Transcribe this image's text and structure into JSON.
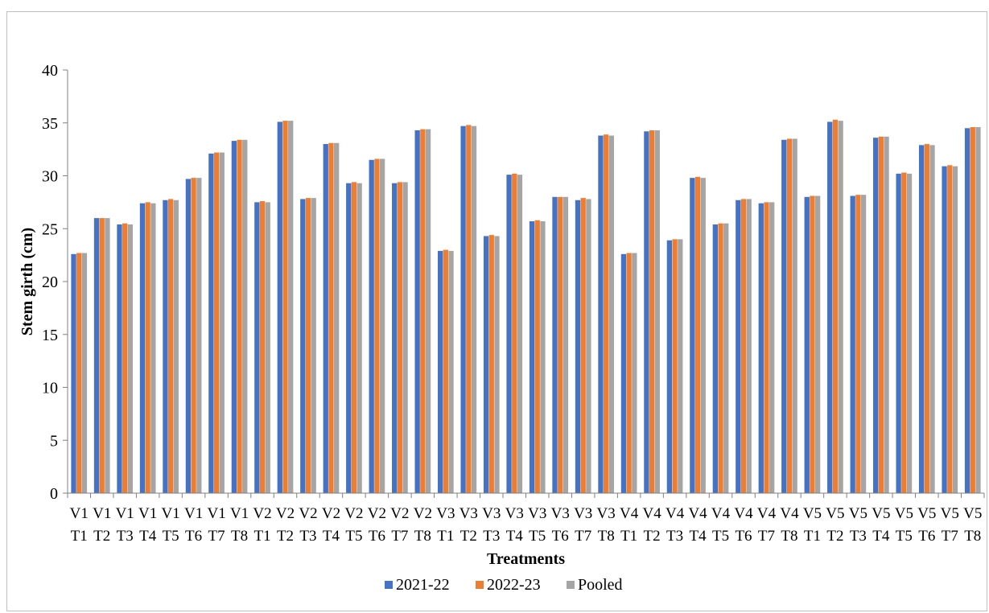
{
  "chart_data": {
    "type": "bar",
    "title": "",
    "xlabel": "Treatments",
    "ylabel": "Stem girth (cm)",
    "ylim": [
      0,
      40
    ],
    "yticks": [
      0,
      5,
      10,
      15,
      20,
      25,
      30,
      35,
      40
    ],
    "grid": false,
    "legend_position": "bottom",
    "categories": [
      [
        "V1",
        "T1"
      ],
      [
        "V1",
        "T2"
      ],
      [
        "V1",
        "T3"
      ],
      [
        "V1",
        "T4"
      ],
      [
        "V1",
        "T5"
      ],
      [
        "V1",
        "T6"
      ],
      [
        "V1",
        "T7"
      ],
      [
        "V1",
        "T8"
      ],
      [
        "V2",
        "T1"
      ],
      [
        "V2",
        "T2"
      ],
      [
        "V2",
        "T3"
      ],
      [
        "V2",
        "T4"
      ],
      [
        "V2",
        "T5"
      ],
      [
        "V2",
        "T6"
      ],
      [
        "V2",
        "T7"
      ],
      [
        "V2",
        "T8"
      ],
      [
        "V3",
        "T1"
      ],
      [
        "V3",
        "T2"
      ],
      [
        "V3",
        "T3"
      ],
      [
        "V3",
        "T4"
      ],
      [
        "V3",
        "T5"
      ],
      [
        "V3",
        "T6"
      ],
      [
        "V3",
        "T7"
      ],
      [
        "V3",
        "T8"
      ],
      [
        "V4",
        "T1"
      ],
      [
        "V4",
        "T2"
      ],
      [
        "V4",
        "T3"
      ],
      [
        "V4",
        "T4"
      ],
      [
        "V4",
        "T5"
      ],
      [
        "V4",
        "T6"
      ],
      [
        "V4",
        "T7"
      ],
      [
        "V4",
        "T8"
      ],
      [
        "V5",
        "T1"
      ],
      [
        "V5",
        "T2"
      ],
      [
        "V5",
        "T3"
      ],
      [
        "V5",
        "T4"
      ],
      [
        "V5",
        "T5"
      ],
      [
        "V5",
        "T6"
      ],
      [
        "V5",
        "T7"
      ],
      [
        "V5",
        "T8"
      ]
    ],
    "series": [
      {
        "name": "2021-22",
        "color": "#4472C4",
        "values": [
          22.6,
          26.0,
          25.4,
          27.4,
          27.7,
          29.7,
          32.1,
          33.3,
          27.5,
          35.1,
          27.8,
          33.0,
          29.3,
          31.5,
          29.3,
          34.3,
          22.9,
          34.7,
          24.3,
          30.1,
          25.7,
          28.0,
          27.7,
          33.8,
          22.6,
          34.2,
          23.9,
          29.8,
          25.4,
          27.7,
          27.4,
          33.4,
          28.0,
          35.1,
          28.1,
          33.6,
          30.2,
          32.9,
          30.9,
          34.5
        ]
      },
      {
        "name": "2022-23",
        "color": "#ED7D31",
        "values": [
          22.7,
          26.0,
          25.5,
          27.5,
          27.8,
          29.8,
          32.2,
          33.4,
          27.6,
          35.2,
          27.9,
          33.1,
          29.4,
          31.6,
          29.4,
          34.4,
          23.0,
          34.8,
          24.4,
          30.2,
          25.8,
          28.0,
          27.9,
          33.9,
          22.7,
          34.3,
          24.0,
          29.9,
          25.5,
          27.8,
          27.5,
          33.5,
          28.1,
          35.3,
          28.2,
          33.7,
          30.3,
          33.0,
          31.0,
          34.6
        ]
      },
      {
        "name": "Pooled",
        "color": "#A5A5A5",
        "values": [
          22.7,
          26.0,
          25.4,
          27.4,
          27.7,
          29.8,
          32.2,
          33.4,
          27.5,
          35.2,
          27.9,
          33.1,
          29.3,
          31.6,
          29.4,
          34.4,
          22.9,
          34.7,
          24.3,
          30.1,
          25.7,
          28.0,
          27.8,
          33.8,
          22.7,
          34.3,
          24.0,
          29.8,
          25.5,
          27.8,
          27.5,
          33.5,
          28.1,
          35.2,
          28.2,
          33.7,
          30.2,
          32.9,
          30.9,
          34.6
        ]
      }
    ]
  }
}
